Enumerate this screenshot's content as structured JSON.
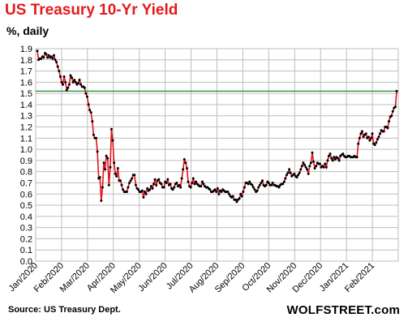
{
  "chart_data": {
    "type": "line",
    "title": "US Treasury 10-Yr Yield",
    "subtitle": "%, daily",
    "ylim": [
      0,
      1.9
    ],
    "yticks": [
      "0.0",
      "0.1",
      "0.2",
      "0.3",
      "0.4",
      "0.5",
      "0.6",
      "0.7",
      "0.8",
      "0.9",
      "1.0",
      "1.1",
      "1.2",
      "1.3",
      "1.4",
      "1.5",
      "1.6",
      "1.7",
      "1.8",
      "1.9"
    ],
    "xticks": [
      "Jan/2020",
      "Feb/2020",
      "Mar/2020",
      "Apr/2020",
      "May/2020",
      "Jun/2020",
      "Jul/2020",
      "Aug/2020",
      "Sep/2020",
      "Oct/2020",
      "Nov/2020",
      "Dec/2020",
      "Jan/2021",
      "Feb/2021"
    ],
    "grid": true,
    "line_color": "#e8101a",
    "marker_color": "#000000",
    "reference_line": {
      "value": 1.52,
      "color": "#1a8a2a"
    },
    "series": [
      {
        "values": [
          1.88,
          1.8,
          1.81,
          1.81,
          1.83,
          1.82,
          1.86,
          1.85,
          1.82,
          1.84,
          1.82,
          1.83,
          1.81,
          1.84,
          1.8,
          1.78,
          1.74,
          1.7,
          1.65,
          1.6,
          1.58,
          1.65,
          1.6,
          1.53,
          1.55,
          1.58,
          1.66,
          1.64,
          1.6,
          1.62,
          1.6,
          1.58,
          1.59,
          1.62,
          1.58,
          1.56,
          1.56,
          1.55,
          1.5,
          1.47,
          1.4,
          1.35,
          1.33,
          1.25,
          1.13,
          1.1,
          1.1,
          0.98,
          0.74,
          0.75,
          0.54,
          0.66,
          0.88,
          0.82,
          0.94,
          0.92,
          0.68,
          0.84,
          1.18,
          1.08,
          0.88,
          0.78,
          0.76,
          0.83,
          0.72,
          0.72,
          0.68,
          0.64,
          0.62,
          0.62,
          0.62,
          0.66,
          0.7,
          0.72,
          0.74,
          0.77,
          0.77,
          0.68,
          0.65,
          0.64,
          0.62,
          0.62,
          0.63,
          0.57,
          0.62,
          0.6,
          0.65,
          0.63,
          0.64,
          0.67,
          0.65,
          0.69,
          0.73,
          0.68,
          0.72,
          0.73,
          0.7,
          0.69,
          0.66,
          0.66,
          0.71,
          0.7,
          0.73,
          0.68,
          0.69,
          0.65,
          0.64,
          0.66,
          0.69,
          0.7,
          0.67,
          0.68,
          0.66,
          0.74,
          0.82,
          0.91,
          0.88,
          0.83,
          0.71,
          0.67,
          0.66,
          0.7,
          0.74,
          0.69,
          0.71,
          0.69,
          0.68,
          0.67,
          0.67,
          0.71,
          0.69,
          0.67,
          0.66,
          0.66,
          0.65,
          0.64,
          0.62,
          0.62,
          0.63,
          0.64,
          0.62,
          0.65,
          0.6,
          0.63,
          0.62,
          0.64,
          0.63,
          0.62,
          0.62,
          0.62,
          0.6,
          0.58,
          0.57,
          0.58,
          0.55,
          0.55,
          0.53,
          0.55,
          0.56,
          0.6,
          0.58,
          0.62,
          0.66,
          0.7,
          0.7,
          0.69,
          0.71,
          0.69,
          0.68,
          0.66,
          0.64,
          0.62,
          0.63,
          0.66,
          0.68,
          0.7,
          0.72,
          0.68,
          0.67,
          0.68,
          0.71,
          0.7,
          0.68,
          0.68,
          0.7,
          0.68,
          0.68,
          0.67,
          0.67,
          0.66,
          0.68,
          0.69,
          0.69,
          0.71,
          0.74,
          0.77,
          0.79,
          0.82,
          0.79,
          0.76,
          0.77,
          0.78,
          0.76,
          0.75,
          0.77,
          0.79,
          0.82,
          0.85,
          0.88,
          0.86,
          0.84,
          0.82,
          0.78,
          0.85,
          0.88,
          0.97,
          0.89,
          0.83,
          0.85,
          0.88,
          0.87,
          0.87,
          0.84,
          0.85,
          0.84,
          0.87,
          0.84,
          0.9,
          0.94,
          0.96,
          0.92,
          0.9,
          0.93,
          0.91,
          0.93,
          0.92,
          0.9,
          0.94,
          0.95,
          0.96,
          0.94,
          0.93,
          0.93,
          0.94,
          0.94,
          0.93,
          0.93,
          0.93,
          0.94,
          0.93,
          0.93,
          1.05,
          1.1,
          1.14,
          1.16,
          1.11,
          1.13,
          1.14,
          1.1,
          1.11,
          1.08,
          1.1,
          1.14,
          1.05,
          1.04,
          1.06,
          1.09,
          1.11,
          1.14,
          1.17,
          1.16,
          1.16,
          1.2,
          1.2,
          1.19,
          1.25,
          1.29,
          1.3,
          1.34,
          1.37,
          1.38,
          1.52
        ]
      }
    ]
  },
  "title": "US Treasury  10-Yr Yield",
  "subtitle": "%, daily",
  "source": "Source: US Treasury Dept.",
  "brand": "WOLFSTREET.com"
}
